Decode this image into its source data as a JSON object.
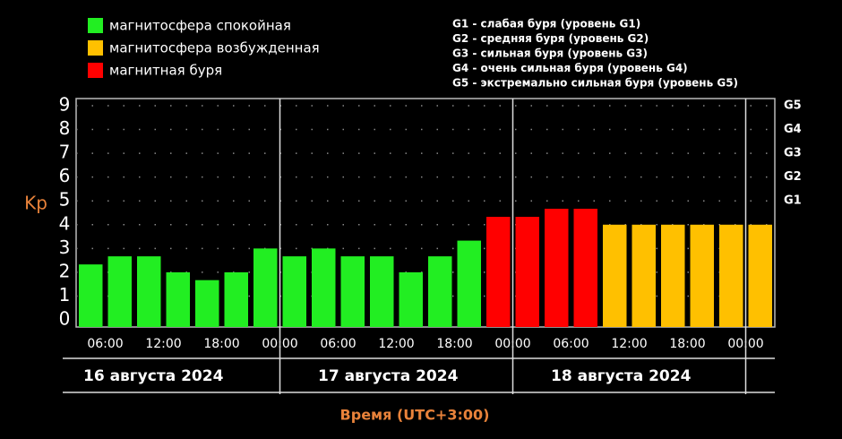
{
  "chart_data": {
    "type": "bar",
    "legend": [
      {
        "name": "магнитосфера спокойная",
        "color": "#22ee22"
      },
      {
        "name": "магнитосфера возбужденная",
        "color": "#ffc000"
      },
      {
        "name": "магнитная буря",
        "color": "#ff0000"
      }
    ],
    "storm_levels": [
      "G1 - слабая буря (уровень G1)",
      "G2 - средняя буря (уровень G2)",
      "G3 - сильная буря (уровень G3)",
      "G4 - очень сильная буря (уровень G4)",
      "G5 - экстремально сильная буря (уровень G5)"
    ],
    "y_label": "Kp",
    "x_label": "Время (UTC+3:00)",
    "time_labels": [
      "06:00",
      "12:00",
      "18:00",
      "00:00",
      "06:00",
      "12:00",
      "18:00",
      "00:00",
      "06:00",
      "12:00",
      "18:00",
      "00:00"
    ],
    "days": [
      "16 августа 2024",
      "17 августа 2024",
      "18 августа 2024"
    ],
    "values": [
      2.33,
      2.67,
      2.67,
      2,
      1.67,
      2,
      3,
      2.67,
      3,
      2.67,
      2.67,
      2,
      2.67,
      3.33,
      4.33,
      4.33,
      4.67,
      4.67,
      4,
      4,
      4,
      4,
      4,
      4
    ],
    "colors": [
      "#22ee22",
      "#22ee22",
      "#22ee22",
      "#22ee22",
      "#22ee22",
      "#22ee22",
      "#22ee22",
      "#22ee22",
      "#22ee22",
      "#22ee22",
      "#22ee22",
      "#22ee22",
      "#22ee22",
      "#22ee22",
      "#ff0000",
      "#ff0000",
      "#ff0000",
      "#ff0000",
      "#ffc000",
      "#ffc000",
      "#ffc000",
      "#ffc000",
      "#ffc000",
      "#ffc000"
    ],
    "ylim": [
      -0.3,
      9.3
    ],
    "yticks": [
      0,
      1,
      2,
      3,
      4,
      5,
      6,
      7,
      8,
      9
    ],
    "y2lim": [
      -0.3,
      9.3
    ],
    "y2ticks": [
      {
        "value": 5,
        "label": "G1"
      },
      {
        "value": 6,
        "label": "G2"
      },
      {
        "value": 7,
        "label": "G3"
      },
      {
        "value": 8,
        "label": "G4"
      },
      {
        "value": 9,
        "label": "G5"
      }
    ],
    "grid": true
  }
}
